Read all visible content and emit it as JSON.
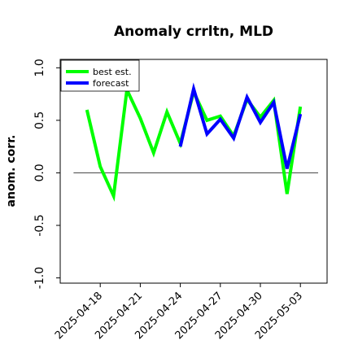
{
  "chart_data": {
    "type": "line",
    "title": "Anomaly crrltn, MLD",
    "xlabel": "",
    "ylabel": "anom. corr.",
    "ylim": [
      -1.05,
      1.08
    ],
    "yticks": [
      -1.0,
      -0.5,
      0.0,
      0.5,
      1.0
    ],
    "ytick_labels": [
      "-1.0",
      "-0.5",
      "0.0",
      "0.5",
      "1.0"
    ],
    "xlim": [
      "2025-04-15",
      "2025-05-05"
    ],
    "xticks": [
      "2025-04-18",
      "2025-04-21",
      "2025-04-24",
      "2025-04-27",
      "2025-04-30",
      "2025-05-03"
    ],
    "xtick_colors": [
      "#000000",
      "#000000",
      "#228b22",
      "#000000",
      "#000000",
      "#000000"
    ],
    "reference_line": 0.0,
    "grid": false,
    "legend_position": "top-left",
    "series": [
      {
        "name": "best est.",
        "color": "#00ff00",
        "x": [
          "2025-04-17",
          "2025-04-18",
          "2025-04-19",
          "2025-04-20",
          "2025-04-21",
          "2025-04-22",
          "2025-04-23",
          "2025-04-24",
          "2025-04-25",
          "2025-04-26",
          "2025-04-27",
          "2025-04-28",
          "2025-04-29",
          "2025-04-30",
          "2025-05-01",
          "2025-05-02",
          "2025-05-03"
        ],
        "values": [
          0.6,
          0.06,
          -0.22,
          0.79,
          0.52,
          0.19,
          0.58,
          0.28,
          0.77,
          0.5,
          0.54,
          0.35,
          0.7,
          0.53,
          0.69,
          -0.2,
          0.63
        ]
      },
      {
        "name": "forecast",
        "color": "#0000ff",
        "x": [
          "2025-04-24",
          "2025-04-25",
          "2025-04-26",
          "2025-04-27",
          "2025-04-28",
          "2025-04-29",
          "2025-04-30",
          "2025-05-01",
          "2025-05-02",
          "2025-05-03"
        ],
        "values": [
          0.25,
          0.8,
          0.37,
          0.51,
          0.33,
          0.72,
          0.48,
          0.67,
          0.04,
          0.56
        ]
      }
    ]
  }
}
